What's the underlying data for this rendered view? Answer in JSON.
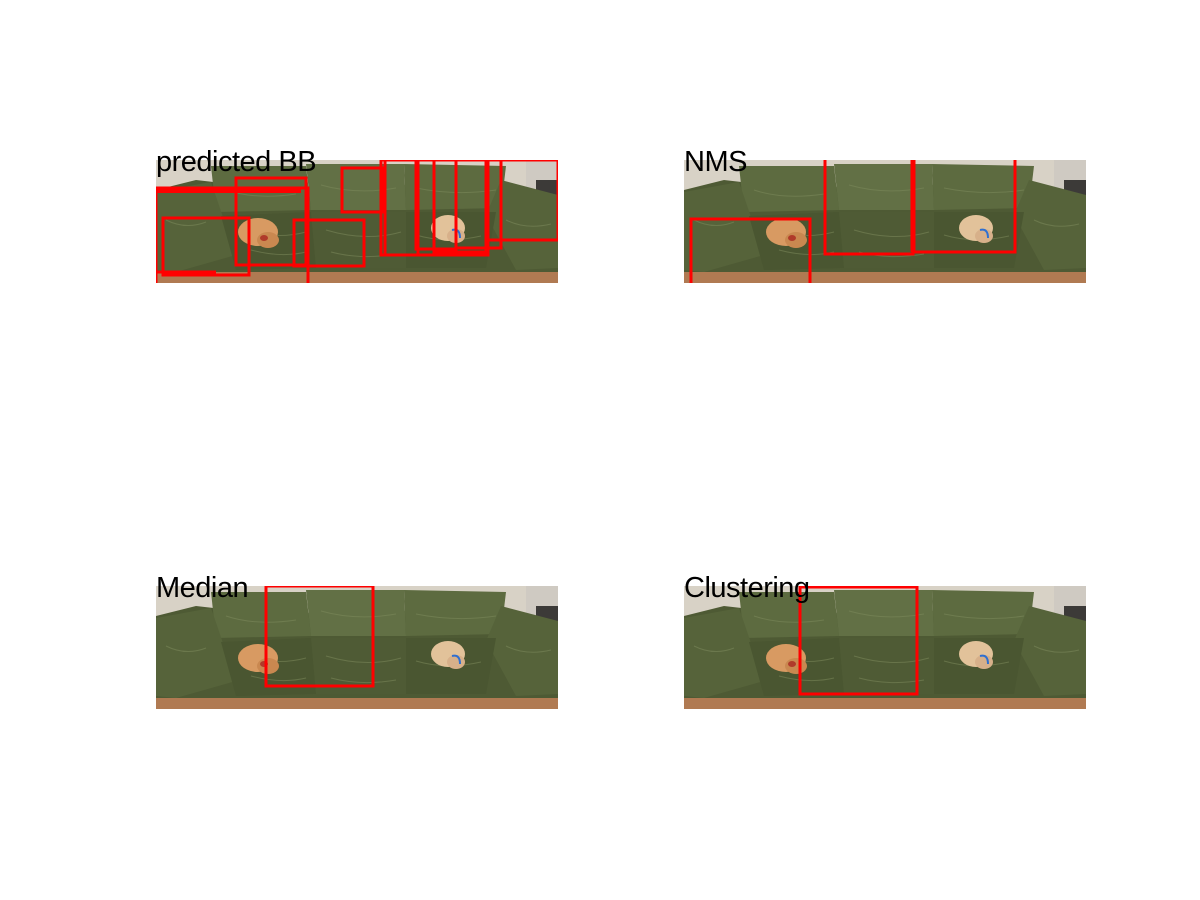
{
  "figure": {
    "box_color": "#ff0000",
    "panels": [
      {
        "title": "predicted BB",
        "image": "green velvet sofa with two sleeping dogs",
        "box_count": 14
      },
      {
        "title": "NMS",
        "image": "green velvet sofa with two sleeping dogs",
        "box_count": 4
      },
      {
        "title": "Median",
        "image": "green velvet sofa with two sleeping dogs",
        "box_count": 1
      },
      {
        "title": "Clustering",
        "image": "green velvet sofa with two sleeping dogs",
        "box_count": 1
      }
    ]
  }
}
